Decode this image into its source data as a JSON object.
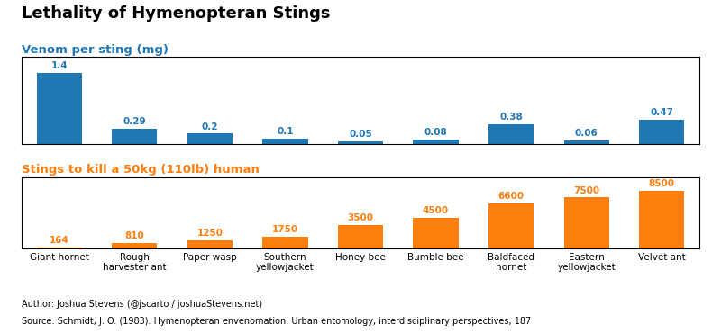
{
  "chart_data": [
    {
      "type": "bar",
      "title": "Lethality of Hymenopteran Stings",
      "subtitle": "Venom per sting (mg)",
      "categories": [
        "Giant hornet",
        "Rough\nharvester ant",
        "Paper wasp",
        "Southern\nyellowjacket",
        "Honey bee",
        "Bumble bee",
        "Baldfaced\nhornet",
        "Eastern\nyellowjacket",
        "Velvet ant"
      ],
      "values": [
        1.4,
        0.29,
        0.2,
        0.1,
        0.05,
        0.08,
        0.38,
        0.06,
        0.47
      ],
      "ylim": [
        0,
        1.72
      ],
      "yticks": [],
      "data_labels": true,
      "tick_labels": false
    },
    {
      "type": "bar",
      "subtitle": "Stings to kill a 50kg (110lb) human",
      "categories": [
        "Giant hornet",
        "Rough\nharvester ant",
        "Paper wasp",
        "Southern\nyellowjacket",
        "Honey bee",
        "Bumble bee",
        "Baldfaced\nhornet",
        "Eastern\nyellowjacket",
        "Velvet ant"
      ],
      "values": [
        164,
        810,
        1250,
        1750,
        3500,
        4500,
        6600,
        7500,
        8500
      ],
      "ylim": [
        0,
        10500
      ],
      "yticks": [],
      "data_labels": true,
      "tick_labels": "x",
      "annotations": [
        "Author: Joshua Stevens (@jscarto / joshuaStevens.net)",
        "Source: Schmidt, J. O. (1983). Hymenopteran envenomation. Urban entomology, interdisciplinary perspectives, 187"
      ]
    }
  ]
}
